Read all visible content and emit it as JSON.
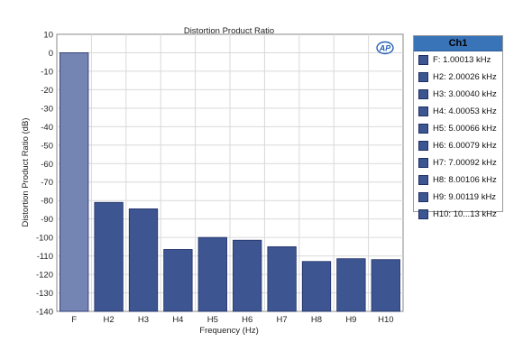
{
  "colors": {
    "bar_fundamental": "#7485b4",
    "bar_harmonic": "#3d5591",
    "bar_stroke": "#1f2f66",
    "grid": "#d9d9d9",
    "legend_header": "#3a74b8",
    "logo": "#2a62b8"
  },
  "logo": {
    "text": "AP",
    "icon": "audio-precision-logo-icon"
  },
  "legend": {
    "title": "Ch1",
    "items": [
      "F: 1.00013 kHz",
      "H2: 2.00026 kHz",
      "H3: 3.00040 kHz",
      "H4: 4.00053 kHz",
      "H5: 5.00066 kHz",
      "H6: 6.00079 kHz",
      "H7: 7.00092 kHz",
      "H8: 8.00106 kHz",
      "H9: 9.00119 kHz",
      "H10: 10...13 kHz"
    ]
  },
  "chart_data": {
    "type": "bar",
    "title": "Distortion Product Ratio",
    "xlabel": "Frequency (Hz)",
    "ylabel": "Distortion Product Ratio (dB)",
    "categories": [
      "F",
      "H2",
      "H3",
      "H4",
      "H5",
      "H6",
      "H7",
      "H8",
      "H9",
      "H10"
    ],
    "values": [
      0,
      -81,
      -84.5,
      -106.5,
      -100,
      -101.5,
      -105,
      -113,
      -111.5,
      -112
    ],
    "ylim": [
      -140,
      10
    ],
    "yticks": [
      10,
      0,
      -10,
      -20,
      -30,
      -40,
      -50,
      -60,
      -70,
      -80,
      -90,
      -100,
      -110,
      -120,
      -130,
      -140
    ],
    "grid": true,
    "legend_position": "right"
  }
}
